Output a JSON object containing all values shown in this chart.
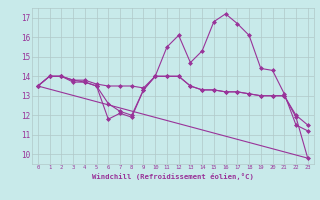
{
  "background_color": "#c8eaea",
  "grid_color": "#b0c8c8",
  "line_color": "#993399",
  "title": "Windchill (Refroidissement éolien,°C)",
  "xlim": [
    -0.5,
    23.5
  ],
  "ylim": [
    9.5,
    17.5
  ],
  "yticks": [
    10,
    11,
    12,
    13,
    14,
    15,
    16,
    17
  ],
  "xticks": [
    0,
    1,
    2,
    3,
    4,
    5,
    6,
    7,
    8,
    9,
    10,
    11,
    12,
    13,
    14,
    15,
    16,
    17,
    18,
    19,
    20,
    21,
    22,
    23
  ],
  "series": [
    {
      "x": [
        0,
        1,
        2,
        3,
        4,
        5,
        6,
        7,
        8,
        9,
        10,
        11,
        12,
        13,
        14,
        15,
        16,
        17,
        18,
        19,
        20,
        21,
        22,
        23
      ],
      "y": [
        13.5,
        14.0,
        14.0,
        13.7,
        13.7,
        13.5,
        11.8,
        12.1,
        11.9,
        13.3,
        14.0,
        15.5,
        16.1,
        14.7,
        15.3,
        16.8,
        17.2,
        16.7,
        16.1,
        14.4,
        14.3,
        13.1,
        11.5,
        11.2
      ],
      "marker": "D",
      "markersize": 2.0
    },
    {
      "x": [
        0,
        1,
        2,
        3,
        4,
        5,
        6,
        7,
        8,
        9,
        10,
        11,
        12,
        13,
        14,
        15,
        16,
        17,
        18,
        19,
        20,
        21,
        22,
        23
      ],
      "y": [
        13.5,
        14.0,
        14.0,
        13.8,
        13.8,
        13.6,
        13.5,
        13.5,
        13.5,
        13.4,
        14.0,
        14.0,
        14.0,
        13.5,
        13.3,
        13.3,
        13.2,
        13.2,
        13.1,
        13.0,
        13.0,
        13.0,
        12.0,
        11.5
      ],
      "marker": "D",
      "markersize": 2.0
    },
    {
      "x": [
        0,
        1,
        2,
        3,
        4,
        5,
        6,
        7,
        8,
        9,
        10,
        11,
        12,
        13,
        14,
        15,
        16,
        17,
        18,
        19,
        20,
        21,
        22,
        23
      ],
      "y": [
        13.5,
        14.0,
        14.0,
        13.8,
        13.7,
        13.5,
        12.6,
        12.2,
        12.0,
        13.3,
        14.0,
        14.0,
        14.0,
        13.5,
        13.3,
        13.3,
        13.2,
        13.2,
        13.1,
        13.0,
        13.0,
        13.0,
        11.9,
        9.8
      ],
      "marker": "D",
      "markersize": 2.0
    },
    {
      "x": [
        0,
        23
      ],
      "y": [
        13.5,
        9.8
      ],
      "marker": null,
      "markersize": 0
    }
  ]
}
